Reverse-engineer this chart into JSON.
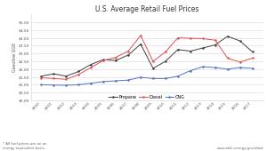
{
  "title": "U.S. Average Retail Fuel Prices",
  "ylabel": "Gasoline GGE",
  "footnote": "* All fuel prices are on an\nenergy equivalent basis.",
  "url": "www.afdc.energy.gov/data/",
  "ylim": [
    0.0,
    5.5
  ],
  "yticks": [
    0.0,
    0.5,
    1.0,
    1.5,
    2.0,
    2.5,
    3.0,
    3.5,
    4.0,
    4.5,
    5.0
  ],
  "ytick_labels": [
    "$0.00",
    "$0.50",
    "$1.00",
    "$1.50",
    "$2.00",
    "$2.50",
    "$3.00",
    "$3.50",
    "$4.00",
    "$4.50",
    "$5.00"
  ],
  "years": [
    "2000",
    "2001",
    "2002",
    "2003",
    "2004",
    "2005",
    "2006",
    "2007",
    "2008",
    "2009",
    "2010",
    "2011",
    "2012",
    "2013",
    "2014",
    "2015",
    "2016",
    "2017"
  ],
  "propane": [
    1.55,
    1.7,
    1.55,
    1.85,
    2.3,
    2.6,
    2.55,
    2.9,
    3.6,
    2.05,
    2.5,
    3.25,
    3.15,
    3.35,
    3.55,
    4.1,
    3.8,
    3.1
  ],
  "diesel": [
    1.45,
    1.4,
    1.35,
    1.65,
    2.1,
    2.55,
    2.75,
    3.15,
    4.15,
    2.5,
    3.1,
    4.0,
    3.97,
    3.95,
    3.85,
    2.7,
    2.45,
    2.7
  ],
  "cng": [
    1.0,
    0.98,
    0.97,
    1.0,
    1.1,
    1.2,
    1.25,
    1.3,
    1.48,
    1.4,
    1.4,
    1.55,
    1.9,
    2.15,
    2.1,
    2.0,
    2.1,
    2.05
  ],
  "propane_color": "#404040",
  "diesel_color": "#e05050",
  "cng_color": "#5070c8",
  "bg_color": "#ffffff",
  "grid_color": "#d8d8d8",
  "title_fontsize": 5.5,
  "label_fontsize": 3.5,
  "tick_fontsize": 3.2,
  "legend_fontsize": 3.5,
  "footnote_fontsize": 2.8,
  "url_fontsize": 2.8
}
